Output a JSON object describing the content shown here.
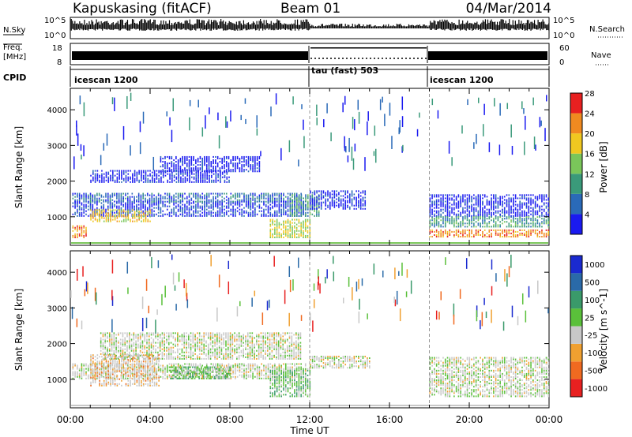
{
  "header": {
    "station": "Kapuskasing (fitACF)",
    "beam": "Beam 01",
    "date": "04/Mar/2014"
  },
  "strip_labels": {
    "nsky": "N.Sky",
    "nsky_ticks": [
      "10^5",
      "10^0"
    ],
    "nsearch": "N.Search",
    "nsearch_ticks": [
      "10^5",
      "10^0"
    ],
    "freq": "Freq.",
    "freq_unit": "[MHz]",
    "freq_ticks": [
      "18",
      "8"
    ],
    "nave": "Nave",
    "nave_ticks": [
      "60",
      "0"
    ],
    "cpid": "CPID"
  },
  "cpid_segments": [
    {
      "label": "icescan 1200",
      "start_hr": 0,
      "end_hr": 12
    },
    {
      "label": "tau (fast) 503",
      "start_hr": 12,
      "end_hr": 18
    },
    {
      "label": "icescan 1200",
      "start_hr": 18,
      "end_hr": 24
    }
  ],
  "x_axis": {
    "label": "Time UT",
    "ticks": [
      "00:00",
      "04:00",
      "08:00",
      "12:00",
      "16:00",
      "20:00",
      "00:00"
    ]
  },
  "chart_data": [
    {
      "type": "heatmap",
      "parameter": "power",
      "x_range_hours": [
        0,
        24
      ],
      "ylabel": "Slant Range [km]",
      "ylim": [
        200,
        4600
      ],
      "yticks": [
        "1000",
        "2000",
        "3000",
        "4000"
      ],
      "colorbar": {
        "label": "Power [dB]",
        "ticks": [
          "4",
          "8",
          "12",
          "16",
          "20",
          "24",
          "28"
        ],
        "colors": [
          "#1a1af0",
          "#2a6ab8",
          "#3a9a7a",
          "#7ac65a",
          "#f0c820",
          "#f08a20",
          "#e82020"
        ]
      },
      "regions": [
        {
          "t": [
            0.1,
            11.8
          ],
          "r": [
            1000,
            1450
          ],
          "level": 7
        },
        {
          "t": [
            0.1,
            11.6
          ],
          "r": [
            1400,
            1650
          ],
          "level": 10
        },
        {
          "t": [
            1.0,
            8.0
          ],
          "r": [
            1950,
            2300
          ],
          "level": 6
        },
        {
          "t": [
            4.5,
            9.5
          ],
          "r": [
            2250,
            2700
          ],
          "level": 5
        },
        {
          "t": [
            1.0,
            4.0
          ],
          "r": [
            850,
            1200
          ],
          "level": 22
        },
        {
          "t": [
            0.1,
            0.8
          ],
          "r": [
            400,
            750
          ],
          "level": 26
        },
        {
          "t": [
            10.0,
            12.0
          ],
          "r": [
            400,
            900
          ],
          "level": 20
        },
        {
          "t": [
            11.0,
            12.5
          ],
          "r": [
            1000,
            1600
          ],
          "level": 14
        },
        {
          "t": [
            12.0,
            14.8
          ],
          "r": [
            1200,
            1700
          ],
          "level": 6
        },
        {
          "t": [
            18.0,
            24.0
          ],
          "r": [
            1000,
            1600
          ],
          "level": 6
        },
        {
          "t": [
            18.0,
            24.0
          ],
          "r": [
            700,
            1000
          ],
          "level": 14
        },
        {
          "t": [
            18.0,
            24.0
          ],
          "r": [
            420,
            620
          ],
          "level": 26
        }
      ]
    },
    {
      "type": "heatmap",
      "parameter": "velocity",
      "x_range_hours": [
        0,
        24
      ],
      "ylabel": "Slant Range [km]",
      "ylim": [
        200,
        4600
      ],
      "yticks": [
        "1000",
        "2000",
        "3000",
        "4000"
      ],
      "colorbar": {
        "label": "Velocity [m s^-1]",
        "ticks": [
          "1000",
          "500",
          "100",
          "25",
          "-25",
          "-100",
          "-500",
          "-1000"
        ],
        "colors": [
          "#1a2ad0",
          "#2a6aa8",
          "#3a9a6a",
          "#5ac03a",
          "#c8c8c8",
          "#f0a030",
          "#f06a20",
          "#e82020"
        ]
      },
      "regions": [
        {
          "t": [
            0.1,
            11.8
          ],
          "r": [
            1000,
            1450
          ],
          "level": 4
        },
        {
          "t": [
            1.5,
            11.6
          ],
          "r": [
            1550,
            2300
          ],
          "level": 4
        },
        {
          "t": [
            1.0,
            4.5
          ],
          "r": [
            800,
            1700
          ],
          "level": 5
        },
        {
          "t": [
            5.0,
            8.0
          ],
          "r": [
            1000,
            1350
          ],
          "level": 3
        },
        {
          "t": [
            10.0,
            12.0
          ],
          "r": [
            500,
            1300
          ],
          "level": 3
        },
        {
          "t": [
            12.0,
            15.0
          ],
          "r": [
            1300,
            1650
          ],
          "level": 4
        },
        {
          "t": [
            18.0,
            24.0
          ],
          "r": [
            500,
            1600
          ],
          "level": 4
        }
      ]
    }
  ]
}
